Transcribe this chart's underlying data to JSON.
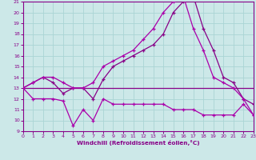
{
  "xlabel": "Windchill (Refroidissement éolien,°C)",
  "bg_color": "#cce8e8",
  "grid_color": "#aad4d4",
  "line_color_dark": "#880088",
  "line_color_mid": "#aa00aa",
  "xmin": 0,
  "xmax": 23,
  "ymin": 9,
  "ymax": 21,
  "hours": [
    0,
    1,
    2,
    3,
    4,
    5,
    6,
    7,
    8,
    9,
    10,
    11,
    12,
    13,
    14,
    15,
    16,
    17,
    18,
    19,
    20,
    21,
    22,
    23
  ],
  "line_flat": [
    13.0,
    13.0,
    13.0,
    13.0,
    13.0,
    13.0,
    13.0,
    13.0,
    13.0,
    13.0,
    13.0,
    13.0,
    13.0,
    13.0,
    13.0,
    13.0,
    13.0,
    13.0,
    13.0,
    13.0,
    13.0,
    13.0,
    13.0,
    13.0
  ],
  "line_low": [
    13.0,
    12.0,
    12.0,
    12.0,
    11.8,
    9.5,
    11.0,
    10.0,
    12.0,
    11.5,
    11.5,
    11.5,
    11.5,
    11.5,
    11.5,
    11.0,
    11.0,
    11.0,
    10.5,
    10.5,
    10.5,
    10.5,
    11.5,
    10.5
  ],
  "line_ramp": [
    13.0,
    13.5,
    14.0,
    13.5,
    12.5,
    13.0,
    13.0,
    12.0,
    13.8,
    15.0,
    15.5,
    16.0,
    16.5,
    17.0,
    18.0,
    20.0,
    21.0,
    21.5,
    18.5,
    16.5,
    14.0,
    13.5,
    12.0,
    11.5
  ],
  "line_peak": [
    13.0,
    13.5,
    14.0,
    14.0,
    13.5,
    13.0,
    13.0,
    13.5,
    15.0,
    15.5,
    16.0,
    16.5,
    17.5,
    18.5,
    20.0,
    21.0,
    21.5,
    18.5,
    16.5,
    14.0,
    13.5,
    13.0,
    12.0,
    10.5
  ]
}
